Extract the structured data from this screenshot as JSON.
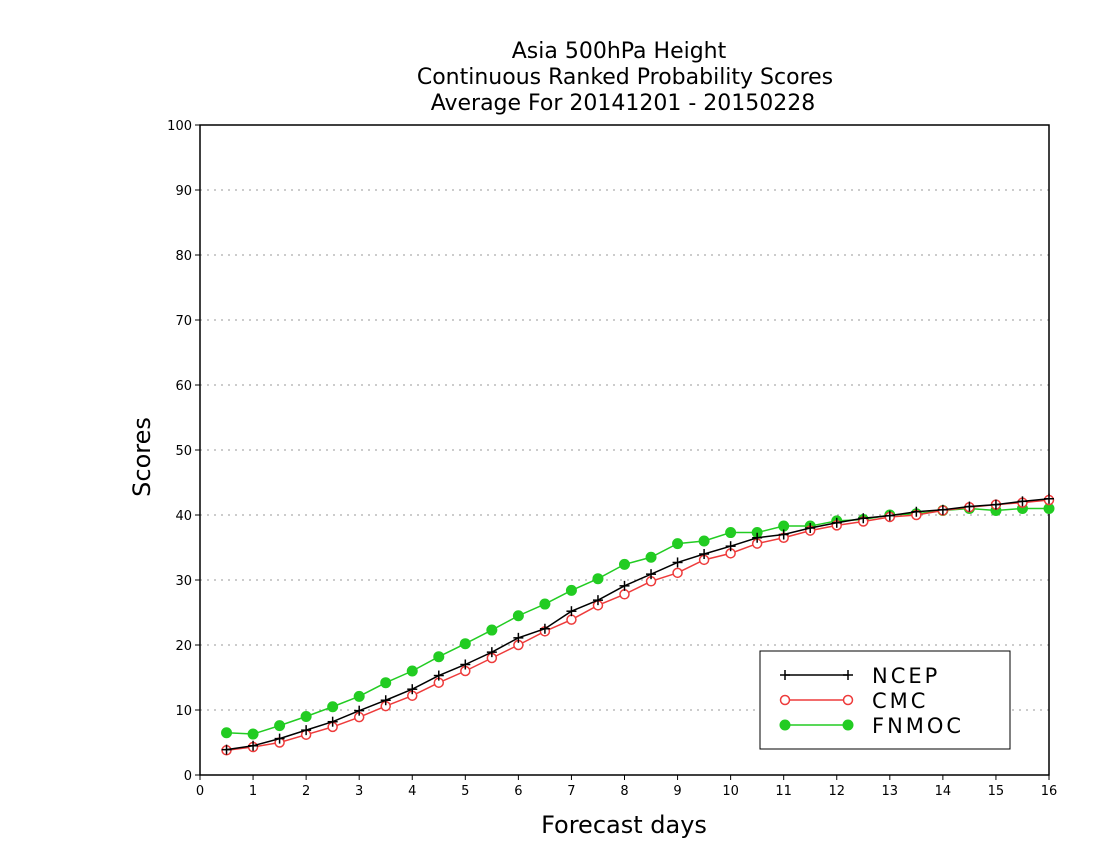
{
  "chart_data": {
    "type": "line",
    "title": [
      "Asia 500hPa Height",
      "Continuous Ranked Probability Scores",
      "Average For 20141201 - 20150228"
    ],
    "xlabel": "Forecast days",
    "ylabel": "Scores",
    "xlim": [
      0,
      16
    ],
    "ylim": [
      0,
      100
    ],
    "xticks": [
      0,
      1,
      2,
      3,
      4,
      5,
      6,
      7,
      8,
      9,
      10,
      11,
      12,
      13,
      14,
      15,
      16
    ],
    "yticks": [
      0,
      10,
      20,
      30,
      40,
      50,
      60,
      70,
      80,
      90,
      100
    ],
    "grid": "horizontal-dotted",
    "legend": "bottom-right",
    "x": [
      0.5,
      1,
      1.5,
      2,
      2.5,
      3,
      3.5,
      4,
      4.5,
      5,
      5.5,
      6,
      6.5,
      7,
      7.5,
      8,
      8.5,
      9,
      9.5,
      10,
      10.5,
      11,
      11.5,
      12,
      12.5,
      13,
      13.5,
      14,
      14.5,
      15,
      15.5,
      16
    ],
    "series": [
      {
        "name": "NCEP",
        "color": "#000000",
        "marker": "plus",
        "values": [
          3.9,
          4.5,
          5.6,
          6.9,
          8.2,
          9.9,
          11.5,
          13.2,
          15.3,
          17.0,
          18.9,
          21.1,
          22.5,
          25.2,
          26.9,
          29.1,
          30.9,
          32.7,
          34.0,
          35.2,
          36.5,
          37.0,
          38.0,
          38.8,
          39.5,
          39.9,
          40.5,
          40.8,
          41.3,
          41.6,
          42.1,
          42.5
        ]
      },
      {
        "name": "CMC",
        "color": "#ee3b3b",
        "marker": "open-circle",
        "values": [
          3.8,
          4.3,
          5.0,
          6.2,
          7.4,
          8.9,
          10.6,
          12.2,
          14.2,
          16.0,
          18.0,
          20.0,
          22.1,
          23.9,
          26.1,
          27.8,
          29.8,
          31.1,
          33.1,
          34.1,
          35.6,
          36.5,
          37.6,
          38.4,
          39.0,
          39.7,
          40.0,
          40.7,
          41.2,
          41.6,
          41.9,
          42.3
        ]
      },
      {
        "name": "FNMOC",
        "color": "#22cc22",
        "marker": "filled-circle",
        "values": [
          6.5,
          6.3,
          7.6,
          9.0,
          10.5,
          12.1,
          14.2,
          16.0,
          18.2,
          20.2,
          22.3,
          24.5,
          26.3,
          28.4,
          30.2,
          32.4,
          33.5,
          35.6,
          36.0,
          37.3,
          37.3,
          38.3,
          38.3,
          39.1,
          39.3,
          40.0,
          40.2,
          40.7,
          41.0,
          40.7,
          41.0,
          41.0
        ]
      }
    ]
  }
}
